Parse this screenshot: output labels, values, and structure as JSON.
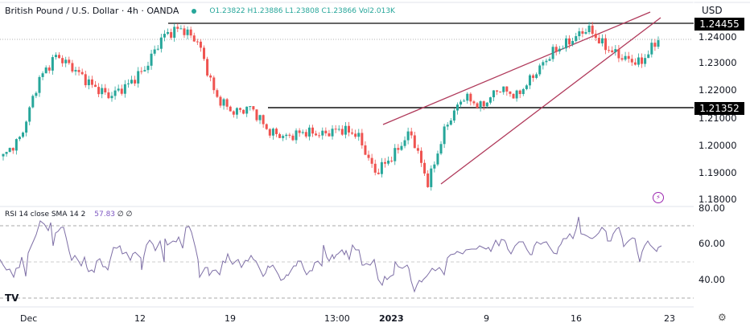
{
  "header": {
    "symbol": "British Pound / U.S. Dollar · 4h · OANDA",
    "ohlc": "O1.23822 H1.23886 L1.23808 C1.23866 Vol2.013K",
    "currency": "USD"
  },
  "rsi": {
    "label": "RSI 14 close SMA 14 2",
    "value": "57.83",
    "extra": "∅ ∅"
  },
  "price_axis": {
    "labels": [
      "1.24000",
      "1.23000",
      "1.22000",
      "1.21000",
      "1.20000",
      "1.19000",
      "1.18000"
    ],
    "resistance_tag": "1.24455",
    "support_tag": "1.21352"
  },
  "rsi_axis": {
    "labels": [
      "80.00",
      "60.00",
      "40.00"
    ]
  },
  "time_axis": {
    "labels": [
      {
        "text": "Dec",
        "x": 25,
        "bold": false
      },
      {
        "text": "12",
        "x": 96,
        "bold": false
      },
      {
        "text": "19",
        "x": 152,
        "bold": false
      },
      {
        "text": "13:00",
        "x": 214,
        "bold": false
      },
      {
        "text": "2023",
        "x": 248,
        "bold": true
      },
      {
        "text": "9",
        "x": 313,
        "bold": false
      },
      {
        "text": "16",
        "x": 367,
        "bold": false
      },
      {
        "text": "23",
        "x": 425,
        "bold": false
      }
    ]
  },
  "chart_data": [
    {
      "type": "candlestick",
      "title": "British Pound / U.S. Dollar · 4h · OANDA",
      "xlabel": "",
      "ylabel": "USD",
      "ylim": [
        1.176,
        1.25
      ],
      "x_ticks": [
        "Dec",
        "12",
        "19",
        "13:00",
        "2023",
        "9",
        "16",
        "23"
      ],
      "y_ticks": [
        1.18,
        1.19,
        1.2,
        1.21,
        1.22,
        1.23,
        1.24
      ],
      "last": {
        "open": 1.23822,
        "high": 1.23886,
        "low": 1.23808,
        "close": 1.23866,
        "volume": "2.013K"
      },
      "horizontal_levels": [
        {
          "name": "resistance",
          "value": 1.24455
        },
        {
          "name": "support",
          "value": 1.21352
        }
      ],
      "trendlines": [
        {
          "name": "rising-wedge-upper",
          "from": [
            1.207,
            "Jan 2"
          ],
          "to": [
            1.249,
            "Jan 25"
          ]
        },
        {
          "name": "rising-wedge-lower",
          "from": [
            1.185,
            "Jan 6"
          ],
          "to": [
            1.247,
            "Jan 25"
          ]
        }
      ],
      "approx_close_path": [
        1.196,
        1.203,
        1.224,
        1.233,
        1.228,
        1.222,
        1.218,
        1.222,
        1.228,
        1.24,
        1.243,
        1.238,
        1.218,
        1.212,
        1.214,
        1.205,
        1.203,
        1.205,
        1.204,
        1.206,
        1.204,
        1.19,
        1.196,
        1.205,
        1.186,
        1.207,
        1.218,
        1.214,
        1.221,
        1.218,
        1.226,
        1.234,
        1.238,
        1.243,
        1.236,
        1.232,
        1.23,
        1.239
      ]
    },
    {
      "type": "line",
      "title": "RSI 14 close SMA 14 2",
      "ylim": [
        26,
        80
      ],
      "y_ticks": [
        40,
        60,
        80
      ],
      "bands": [
        30,
        50,
        70
      ],
      "last_value": 57.83
    }
  ]
}
